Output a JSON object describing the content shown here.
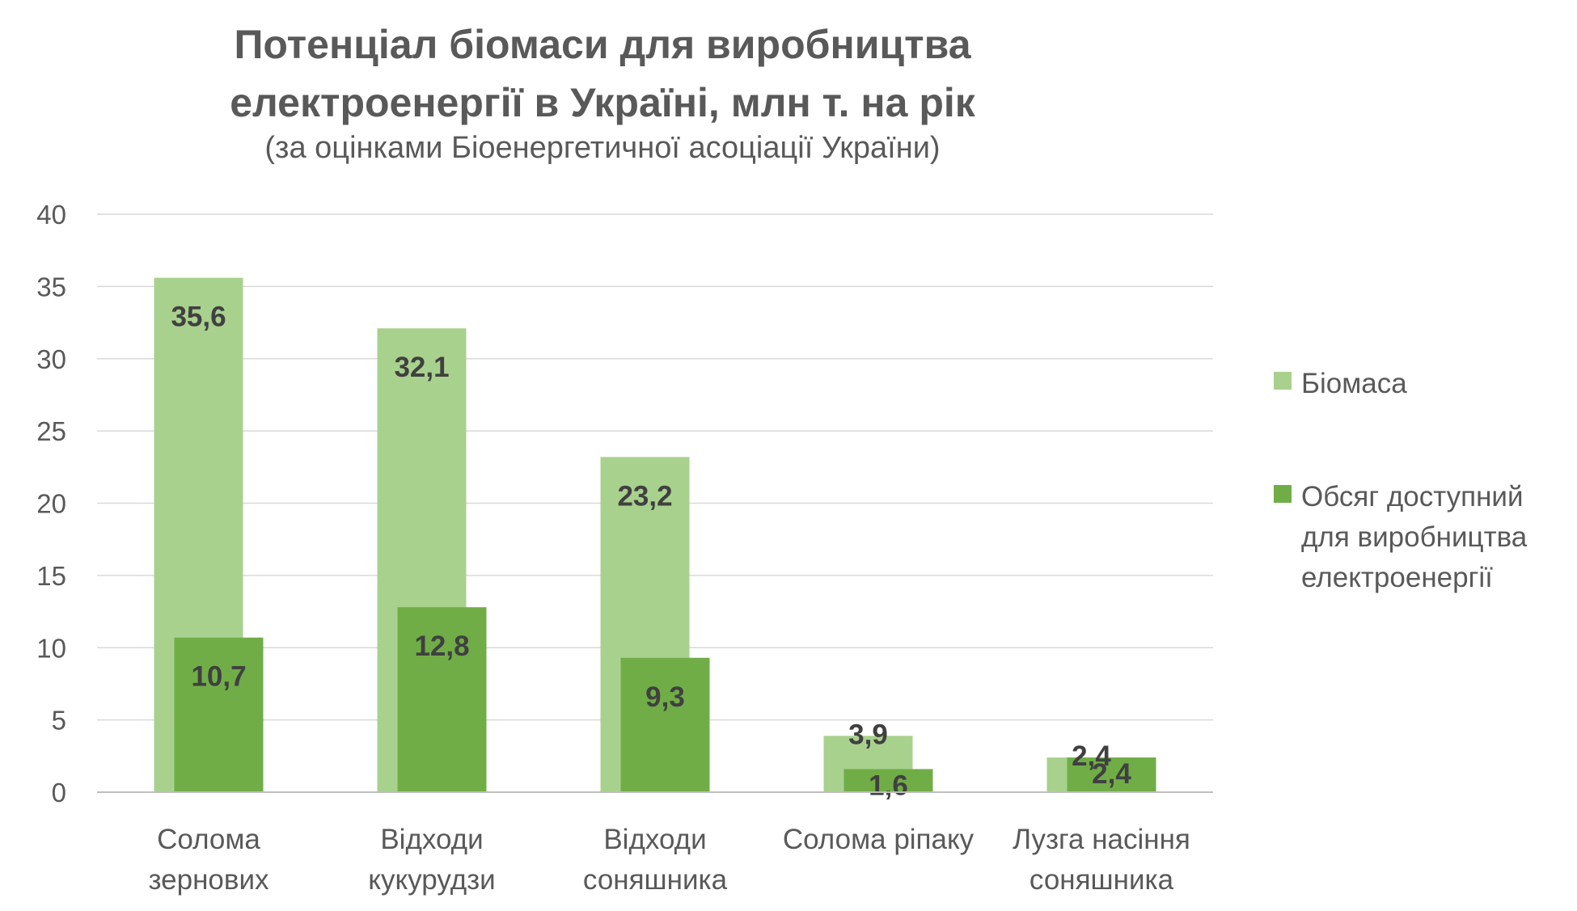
{
  "chart_data": {
    "type": "bar",
    "title_lines": [
      "Потенціал біомаси для виробництва",
      "електроенергії в Україні, млн т. на рік"
    ],
    "subtitle": "(за оцінками Біоенергетичної асоціації України)",
    "categories": [
      [
        "Солома",
        "зернових"
      ],
      [
        "Відходи",
        "кукурудзи"
      ],
      [
        "Відходи",
        "соняшника"
      ],
      [
        "Солома ріпаку"
      ],
      [
        "Лузга насіння",
        "соняшника"
      ]
    ],
    "series": [
      {
        "name": "Біомаса",
        "values": [
          35.6,
          32.1,
          23.2,
          3.9,
          2.4
        ],
        "labels": [
          "35,6",
          "32,1",
          "23,2",
          "3,9",
          "2,4"
        ],
        "color": "#a9d18e"
      },
      {
        "name": "Обсяг доступний для виробництва електроенергії",
        "values": [
          10.7,
          12.8,
          9.3,
          1.6,
          2.4
        ],
        "labels": [
          "10,7",
          "12,8",
          "9,3",
          "1,6",
          "2,4"
        ],
        "color": "#70ad47"
      }
    ],
    "ylim": [
      0,
      40
    ],
    "yticks": [
      0,
      5,
      10,
      15,
      20,
      25,
      30,
      35,
      40
    ],
    "grid": true,
    "legend_position": "right"
  },
  "legend": {
    "series1_lines": [
      "Біомаса"
    ],
    "series2_lines": [
      "Обсяг доступний",
      "для виробництва",
      "електроенергії"
    ]
  }
}
